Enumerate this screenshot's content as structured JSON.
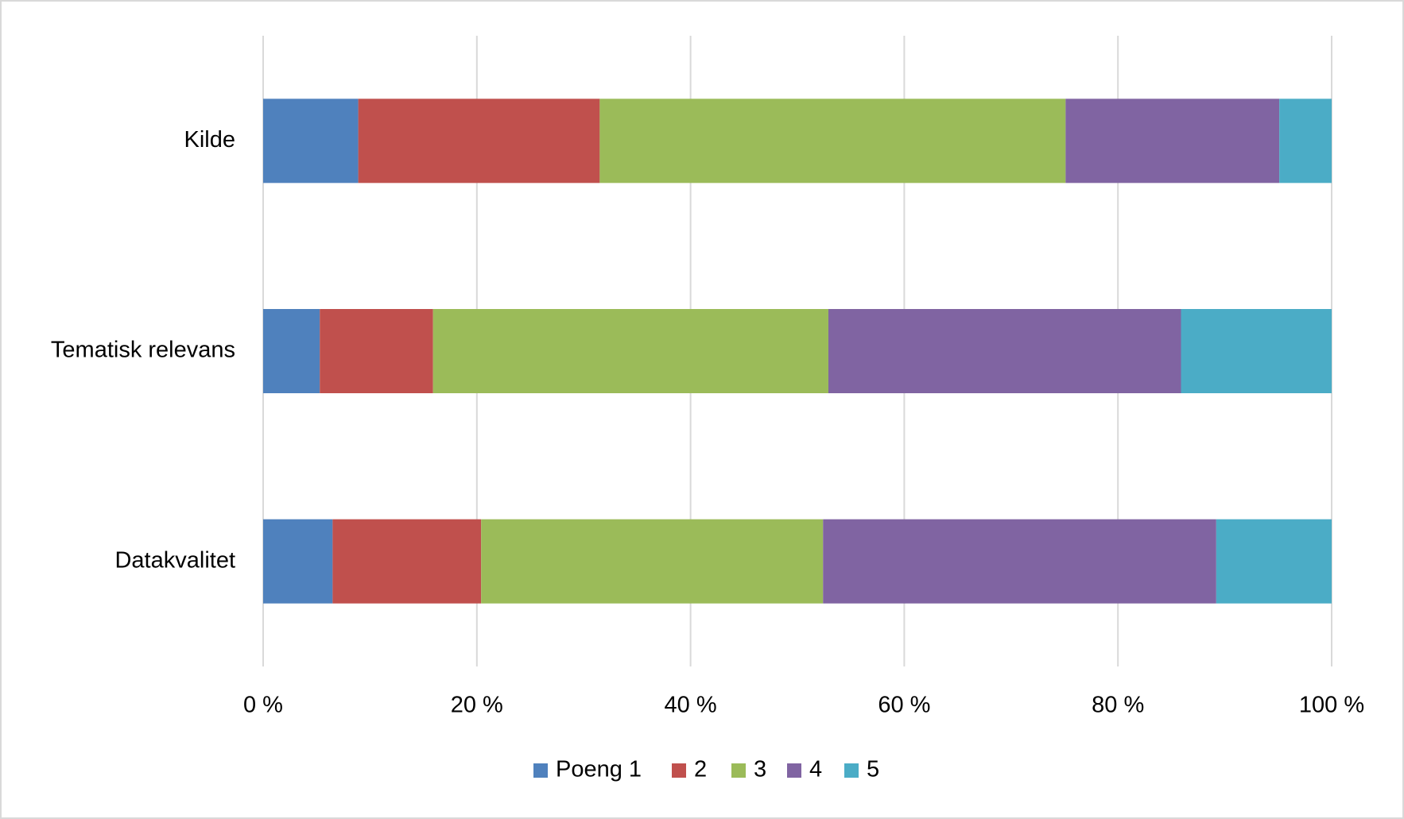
{
  "chart_data": {
    "type": "stacked-bar-horizontal",
    "categories": [
      "Kilde",
      "Tematisk relevans",
      "Datakvalitet"
    ],
    "series": [
      {
        "name": "Poeng 1",
        "color": "#4f81bd",
        "values": [
          8.9,
          5.3,
          6.5
        ]
      },
      {
        "name": "2",
        "color": "#c0504d",
        "values": [
          22.6,
          10.6,
          13.9
        ]
      },
      {
        "name": "3",
        "color": "#9bbb59",
        "values": [
          43.6,
          37.0,
          32.0
        ]
      },
      {
        "name": "4",
        "color": "#8064a2",
        "values": [
          20.0,
          33.0,
          36.8
        ]
      },
      {
        "name": "5",
        "color": "#4bacc6",
        "values": [
          4.9,
          14.1,
          10.8
        ]
      }
    ],
    "xlim": [
      0,
      100
    ],
    "xticks": [
      {
        "value": 0,
        "label": "0 %"
      },
      {
        "value": 20,
        "label": "20 %"
      },
      {
        "value": 40,
        "label": "40 %"
      },
      {
        "value": 60,
        "label": "60 %"
      },
      {
        "value": 80,
        "label": "80 %"
      },
      {
        "value": 100,
        "label": "100 %"
      }
    ],
    "grid": true,
    "legend": "bottom"
  }
}
